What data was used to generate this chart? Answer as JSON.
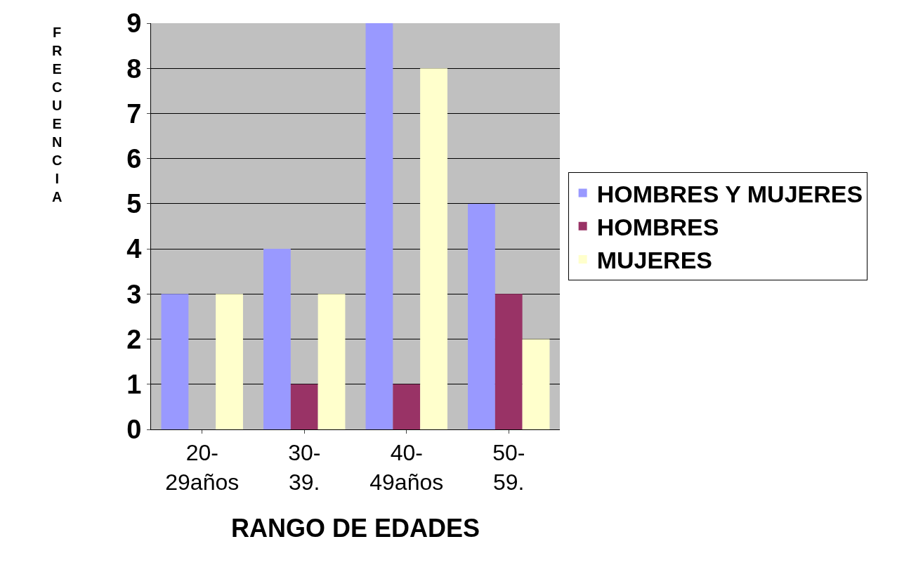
{
  "chart_data": {
    "type": "bar",
    "xlabel": "RANGO DE EDADES",
    "ylabel": "FRECUENCIA",
    "categories": [
      "20-29años",
      "30-39.",
      "40-49años",
      "50-59."
    ],
    "series": [
      {
        "name": "HOMBRES Y MUJERES",
        "color": "#9999ff",
        "values": [
          3,
          4,
          9,
          5
        ]
      },
      {
        "name": "HOMBRES",
        "color": "#993366",
        "values": [
          0,
          1,
          1,
          3
        ]
      },
      {
        "name": "MUJERES",
        "color": "#ffffcc",
        "values": [
          3,
          3,
          8,
          2
        ]
      }
    ],
    "ylim": [
      0,
      9
    ],
    "yticks": [
      0,
      1,
      2,
      3,
      4,
      5,
      6,
      7,
      8,
      9
    ],
    "grid": "y",
    "legend": "right"
  }
}
